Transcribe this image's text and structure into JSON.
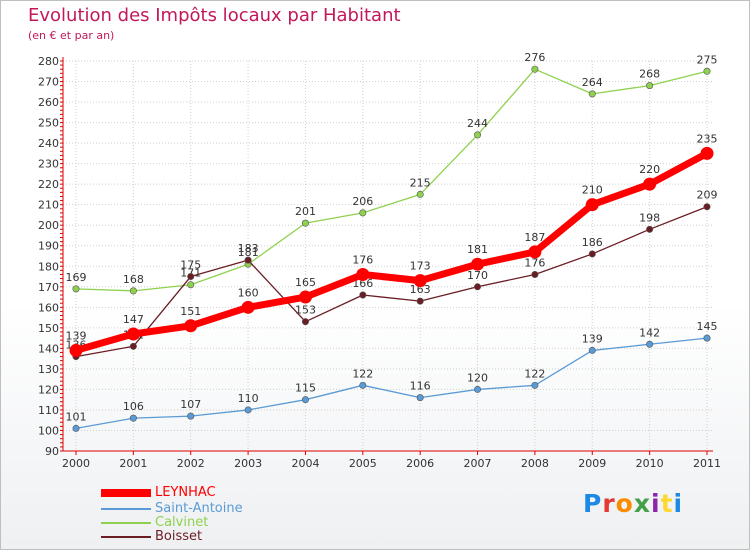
{
  "header": {
    "title": "Evolution des Impôts locaux par Habitant",
    "subtitle": "(en € et par an)"
  },
  "brand": {
    "name": "Proxiti",
    "letter_colors": [
      "#1e88e5",
      "#e53935",
      "#fb8c00",
      "#43a047",
      "#8e24aa",
      "#fdd835",
      "#1e88e5"
    ]
  },
  "colors": {
    "axis": "#e00000",
    "grid": "#d0d0d0",
    "text": "#333333",
    "title": "#c2185b"
  },
  "chart_data": {
    "type": "line",
    "title": "Evolution des Impôts locaux par Habitant",
    "subtitle": "(en € et par an)",
    "xlabel": "",
    "ylabel": "",
    "x": [
      "2000",
      "2001",
      "2002",
      "2003",
      "2004",
      "2005",
      "2006",
      "2007",
      "2008",
      "2009",
      "2010",
      "2011"
    ],
    "ylim": [
      90,
      280
    ],
    "y_ticks": [
      90,
      100,
      110,
      120,
      130,
      140,
      150,
      160,
      170,
      180,
      190,
      200,
      210,
      220,
      230,
      240,
      250,
      260,
      270,
      280
    ],
    "grid": true,
    "legend_position": "bottom-left",
    "series": [
      {
        "name": "LEYNHAC",
        "color": "#ff0000",
        "emphasis": true,
        "values": [
          139,
          147,
          151,
          160,
          165,
          176,
          173,
          181,
          187,
          210,
          220,
          235
        ]
      },
      {
        "name": "Saint-Antoine",
        "color": "#5b9bd5",
        "emphasis": false,
        "values": [
          101,
          106,
          107,
          110,
          115,
          122,
          116,
          120,
          122,
          139,
          142,
          145
        ]
      },
      {
        "name": "Calvinet",
        "color": "#8fd14f",
        "emphasis": false,
        "values": [
          169,
          168,
          171,
          181,
          201,
          206,
          215,
          244,
          276,
          264,
          268,
          275
        ]
      },
      {
        "name": "Boisset",
        "color": "#6b1d24",
        "emphasis": false,
        "values": [
          136,
          141,
          175,
          183,
          153,
          166,
          163,
          170,
          176,
          186,
          198,
          209
        ]
      }
    ]
  }
}
